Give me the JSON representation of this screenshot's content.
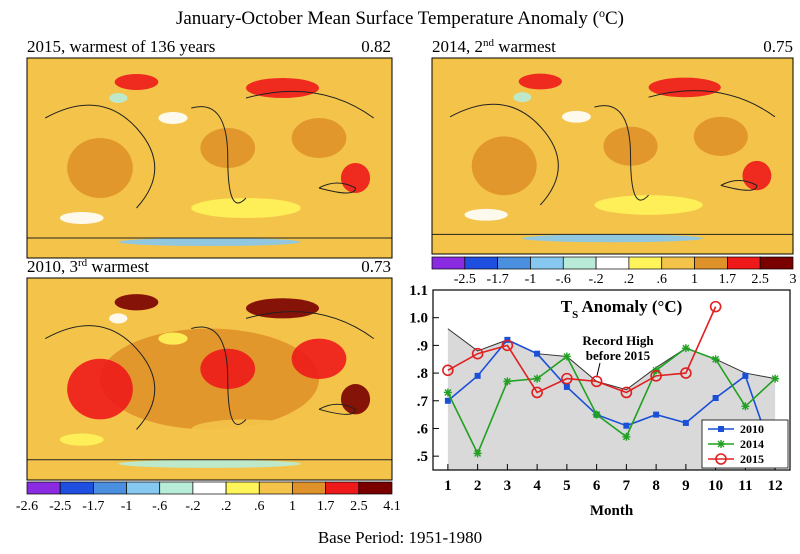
{
  "header": {
    "title": "January-October Mean Surface Temperature Anomaly (",
    "title_sup": "o",
    "title_end": "C)"
  },
  "maps": [
    {
      "label": "2015, warmest of 136 years",
      "value": "0.82"
    },
    {
      "label": "2014, 2",
      "label_sup": "nd",
      "label_end": " warmest",
      "value": "0.75"
    },
    {
      "label": "2010, 3",
      "label_sup": "rd",
      "label_end": " warmest",
      "value": "0.73"
    }
  ],
  "colorbar": {
    "colors": [
      "#8a2be2",
      "#1f4fe0",
      "#4a8fe0",
      "#86c8f0",
      "#b8ecd8",
      "#ffffff",
      "#fff45a",
      "#f4c44a",
      "#e0922a",
      "#ee1a1a",
      "#7a0000"
    ],
    "labels_left": [
      "-2.6",
      "-2.5",
      "-1.7",
      "-1",
      "-.6",
      "-.2",
      ".2",
      ".6",
      "1",
      "1.7",
      "2.5",
      "4.1"
    ],
    "labels_right": [
      "-2.5",
      "-1.7",
      "-1",
      "-.6",
      "-.2",
      ".2",
      ".6",
      "1",
      "1.7",
      "2.5",
      "3"
    ]
  },
  "footer": "Base Period: 1951-1980",
  "chart_data": {
    "type": "line",
    "title": "T",
    "title_sub": "S",
    "title_end": " Anomaly (°C)",
    "xlabel": "Month",
    "annotation": [
      "Record High",
      "before 2015"
    ],
    "x": [
      1,
      2,
      3,
      4,
      5,
      6,
      7,
      8,
      9,
      10,
      11,
      12
    ],
    "xlim": [
      0.5,
      12.5
    ],
    "xticks": [
      1,
      2,
      3,
      4,
      5,
      6,
      7,
      8,
      9,
      10,
      11,
      12
    ],
    "ylim": [
      0.45,
      1.1
    ],
    "yticks": [
      {
        "value": 0.5,
        "label": ".5"
      },
      {
        "value": 0.6,
        "label": ".6"
      },
      {
        "value": 0.7,
        "label": ".7"
      },
      {
        "value": 0.8,
        "label": ".8"
      },
      {
        "value": 0.9,
        "label": ".9"
      },
      {
        "value": 1.0,
        "label": "1.0"
      },
      1.1
    ],
    "record_high": {
      "color": "#d9d9d9",
      "values": [
        0.96,
        0.88,
        0.92,
        0.87,
        0.86,
        0.77,
        0.74,
        0.82,
        0.89,
        0.85,
        0.8,
        0.78
      ]
    },
    "series": [
      {
        "name": "2010",
        "color": "#1a4fd8",
        "marker": "square",
        "values": [
          0.7,
          0.79,
          0.92,
          0.87,
          0.75,
          0.65,
          0.61,
          0.65,
          0.62,
          0.71,
          0.79,
          0.48
        ]
      },
      {
        "name": "2014",
        "color": "#22a022",
        "marker": "star",
        "values": [
          0.73,
          0.51,
          0.77,
          0.78,
          0.86,
          0.65,
          0.57,
          0.81,
          0.89,
          0.85,
          0.68,
          0.78
        ]
      },
      {
        "name": "2015",
        "color": "#e02020",
        "marker": "circle",
        "values": [
          0.81,
          0.87,
          0.9,
          0.73,
          0.78,
          0.77,
          0.73,
          0.79,
          0.8,
          1.04,
          null,
          null
        ]
      }
    ]
  }
}
